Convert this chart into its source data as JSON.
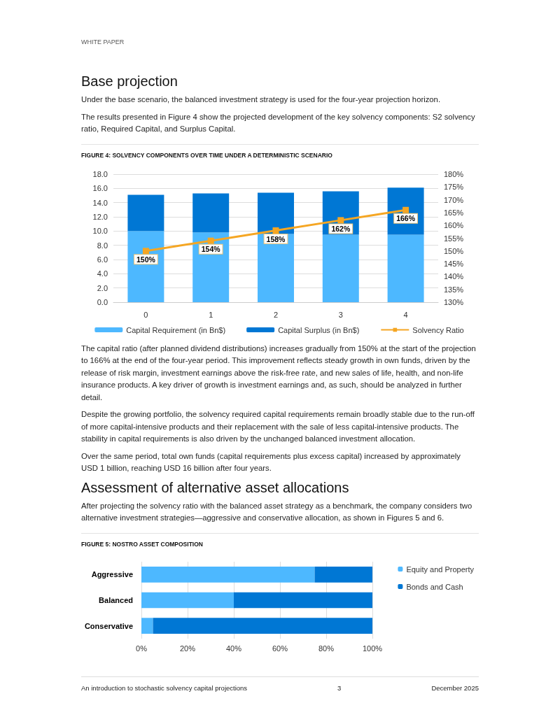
{
  "chart_data": [
    {
      "type": "bar",
      "title": "FIGURE 4: SOLVENCY COMPONENTS OVER TIME UNDER A DETERMINISTIC SCENARIO",
      "annotations": [
        "WHITE PAPER",
        "Base projection",
        "Under the base scenario, the balanced investment strategy is used for the four-year projection horizon.",
        "The results presented in Figure 4 show the projected development of the key solvency components: S2 solvency ratio, Required Capital, and Surplus Capital."
      ],
      "stacked": true,
      "categories": [
        "0",
        "1",
        "2",
        "3",
        "4"
      ],
      "series": [
        {
          "name": "Capital Requirement (in Bn$)",
          "color": "#4db8ff",
          "values": [
            10.0,
            9.8,
            9.6,
            9.5,
            9.5
          ]
        },
        {
          "name": "Capital Surplus (in Bn$)",
          "color": "#0077d4",
          "values": [
            5.1,
            5.5,
            5.8,
            6.1,
            6.6
          ]
        },
        {
          "name": "Solvency Ratio",
          "type": "line",
          "axis": "y2",
          "marker": "square",
          "color": "#f5a623",
          "values": [
            150,
            154,
            158,
            162,
            166
          ],
          "value_labels": [
            "150%",
            "154%",
            "158%",
            "162%",
            "166%"
          ]
        }
      ],
      "ylim": [
        0,
        18
      ],
      "yticks": [
        {
          "value": 0,
          "label": "0.0"
        },
        {
          "value": 2,
          "label": "2.0"
        },
        {
          "value": 4,
          "label": "4.0"
        },
        {
          "value": 6,
          "label": "6.0"
        },
        {
          "value": 8,
          "label": "8.0"
        },
        {
          "value": 10,
          "label": "10.0"
        },
        {
          "value": 12,
          "label": "12.0"
        },
        {
          "value": 14,
          "label": "14.0"
        },
        {
          "value": 16,
          "label": "16.0"
        },
        {
          "value": 18,
          "label": "18.0"
        }
      ],
      "y2lim": [
        130,
        180
      ],
      "y2ticks": [
        {
          "value": 130,
          "label": "130%"
        },
        {
          "value": 135,
          "label": "135%"
        },
        {
          "value": 140,
          "label": "140%"
        },
        {
          "value": 145,
          "label": "145%"
        },
        {
          "value": 150,
          "label": "150%"
        },
        {
          "value": 155,
          "label": "155%"
        },
        {
          "value": 160,
          "label": "160%"
        },
        {
          "value": 165,
          "label": "165%"
        },
        {
          "value": 170,
          "label": "170%"
        },
        {
          "value": 175,
          "label": "175%"
        },
        {
          "value": 180,
          "label": "180%"
        }
      ],
      "grid": "y",
      "legend": "bottom"
    },
    {
      "type": "bar",
      "title": "FIGURE 5: NOSTRO ASSET COMPOSITION",
      "annotations": [
        "The capital ratio (after planned dividend distributions) increases gradually from 150% at the start of the projection to 166% at the end of the four-year period. This improvement reflects steady growth in own funds, driven by the release of risk margin, investment earnings above the risk-free rate, and new sales of life, health, and non-life insurance products. A key driver of growth is investment earnings and, as such, should be analyzed in further detail.",
        "Despite the growing portfolio, the solvency required capital requirements remain broadly stable due to the run-off of more capital-intensive products and their replacement with the sale of less capital-intensive products. The stability in capital requirements is also driven by the unchanged balanced investment allocation.",
        "Over the same period, total own funds (capital requirements plus excess capital) increased by approximately USD 1 billion, reaching USD 16 billion after four years.",
        "Assessment of alternative asset allocations",
        "After projecting the solvency ratio with the balanced asset strategy as a benchmark, the company considers two alternative investment strategies—aggressive and conservative allocation, as shown in Figures 5 and 6."
      ],
      "orientation": "horizontal",
      "stacked": true,
      "categories": [
        "Aggressive",
        "Balanced",
        "Conservative"
      ],
      "series": [
        {
          "name": "Equity and Property",
          "color": "#4db8ff",
          "values": [
            75,
            40,
            5
          ]
        },
        {
          "name": "Bonds and Cash",
          "color": "#0077d4",
          "values": [
            25,
            60,
            95
          ]
        }
      ],
      "xlim": [
        0,
        100
      ],
      "xticks": [
        {
          "value": 0,
          "label": "0%"
        },
        {
          "value": 20,
          "label": "20%"
        },
        {
          "value": 40,
          "label": "40%"
        },
        {
          "value": 60,
          "label": "60%"
        },
        {
          "value": 80,
          "label": "80%"
        },
        {
          "value": 100,
          "label": "100%"
        }
      ],
      "grid": "x",
      "legend": "top right"
    },
    {
      "type": "other",
      "annotations": [
        "An introduction to stochastic solvency capital projections",
        "3",
        "December 2025"
      ]
    }
  ]
}
